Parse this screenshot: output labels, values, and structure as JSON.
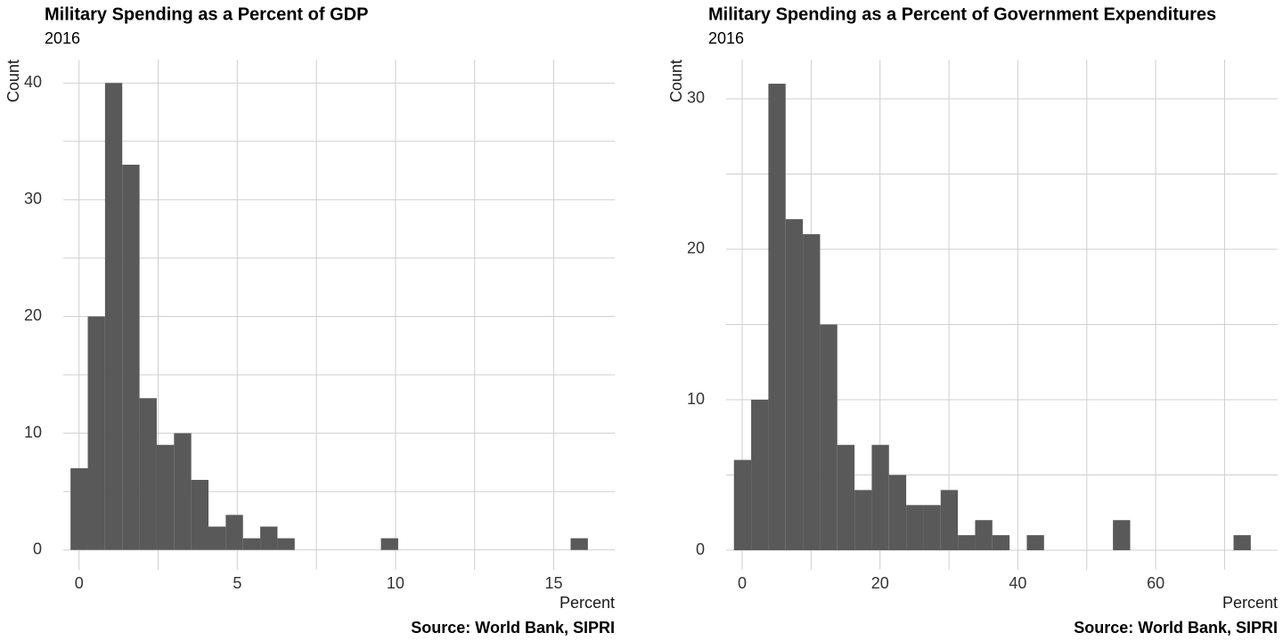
{
  "chart_data": [
    {
      "type": "histogram",
      "title": "Military Spending as a Percent of GDP",
      "subtitle": "2016",
      "xlabel": "Percent",
      "ylabel": "Count",
      "caption": "Source: World Bank, SIPRI",
      "color": "#595959",
      "bins": [
        -0.27,
        0.275,
        0.82,
        1.365,
        1.91,
        2.455,
        3,
        3.545,
        4.09,
        4.635,
        5.18,
        5.725,
        6.27,
        6.815,
        7.36,
        7.905,
        8.45,
        8.995,
        9.54,
        10.085,
        10.63,
        11.175,
        11.72,
        12.265,
        12.81,
        13.355,
        13.9,
        14.445,
        14.99,
        15.535,
        16.08
      ],
      "values": [
        7,
        20,
        40,
        33,
        13,
        9,
        10,
        6,
        2,
        3,
        1,
        2,
        1,
        0,
        0,
        0,
        0,
        0,
        1,
        0,
        0,
        0,
        0,
        0,
        0,
        0,
        0,
        0,
        0,
        1
      ],
      "xlim": [
        -0.5,
        16.93
      ],
      "ylim": [
        -1.7,
        42
      ],
      "xticks": [
        0,
        5,
        10,
        15
      ],
      "yticks": [
        0,
        10,
        20,
        30,
        40
      ],
      "xminor": [
        2.5,
        7.5,
        12.5
      ],
      "yminor": [
        5,
        15,
        25,
        35
      ],
      "grid": true
    },
    {
      "type": "histogram",
      "title": "Military Spending as a Percent of Government Expenditures",
      "subtitle": "2016",
      "xlabel": "Percent",
      "ylabel": "Count",
      "caption": "Source: World Bank, SIPRI",
      "color": "#595959",
      "bins": [
        -1.2,
        1.3,
        3.8,
        6.3,
        8.8,
        11.3,
        13.8,
        16.3,
        18.8,
        21.3,
        23.8,
        26.3,
        28.8,
        31.3,
        33.8,
        36.3,
        38.8,
        41.3,
        43.8,
        46.3,
        48.8,
        51.3,
        53.8,
        56.3,
        58.8,
        61.3,
        63.8,
        66.3,
        68.8,
        71.3,
        73.8
      ],
      "values": [
        6,
        10,
        31,
        22,
        21,
        15,
        7,
        4,
        7,
        5,
        3,
        3,
        4,
        1,
        2,
        1,
        0,
        1,
        0,
        0,
        0,
        0,
        2,
        0,
        0,
        0,
        0,
        0,
        0,
        1
      ],
      "xlim": [
        -2.33,
        77.7
      ],
      "ylim": [
        -1.3,
        32.6
      ],
      "xticks": [
        0,
        20,
        40,
        60
      ],
      "yticks": [
        0,
        10,
        20,
        30
      ],
      "xminor": [
        10,
        30,
        50,
        70
      ],
      "yminor": [
        5,
        15,
        25
      ],
      "grid": true
    }
  ]
}
